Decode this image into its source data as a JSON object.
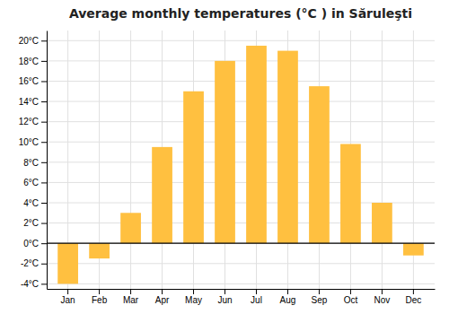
{
  "chart_data": {
    "type": "bar",
    "title": "Average monthly temperatures (°C ) in Săruleşti",
    "categories": [
      "Jan",
      "Feb",
      "Mar",
      "Apr",
      "May",
      "Jun",
      "Jul",
      "Aug",
      "Sep",
      "Oct",
      "Nov",
      "Dec"
    ],
    "values": [
      -4.0,
      -1.5,
      3.0,
      9.5,
      15.0,
      18.0,
      19.5,
      19.0,
      15.5,
      9.8,
      4.0,
      -1.2
    ],
    "color": "#FFC040",
    "ylim": [
      -4.5,
      21
    ],
    "yticks": [
      {
        "value": -4,
        "label": "-4°C"
      },
      {
        "value": -2,
        "label": "-2°C"
      },
      {
        "value": 0,
        "label": "0°C"
      },
      {
        "value": 2,
        "label": "2°C"
      },
      {
        "value": 4,
        "label": "4°C"
      },
      {
        "value": 6,
        "label": "6°C"
      },
      {
        "value": 8,
        "label": "8°C"
      },
      {
        "value": 10,
        "label": "10°C"
      },
      {
        "value": 12,
        "label": "12°C"
      },
      {
        "value": 14,
        "label": "14°C"
      },
      {
        "value": 16,
        "label": "16°C"
      },
      {
        "value": 18,
        "label": "18°C"
      },
      {
        "value": 20,
        "label": "20°C"
      }
    ],
    "grid": true
  }
}
